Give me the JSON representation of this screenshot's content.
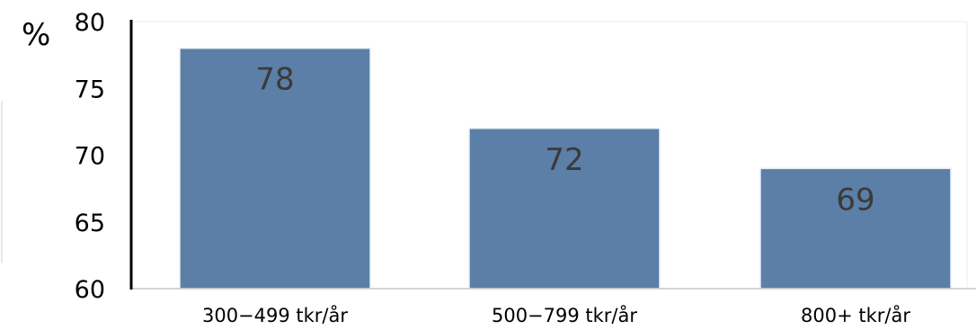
{
  "chart_data": {
    "type": "bar",
    "categories": [
      "300−499 tkr/år",
      "500−799 tkr/år",
      "800+ tkr/år"
    ],
    "values": [
      78,
      72,
      69
    ],
    "data_labels": [
      "78",
      "72",
      "69"
    ],
    "ylabel": "%",
    "ylim": [
      60,
      80
    ],
    "yticks": [
      "60",
      "65",
      "70",
      "75",
      "80"
    ],
    "bar_color": "#5b7fa6",
    "grid": false
  }
}
